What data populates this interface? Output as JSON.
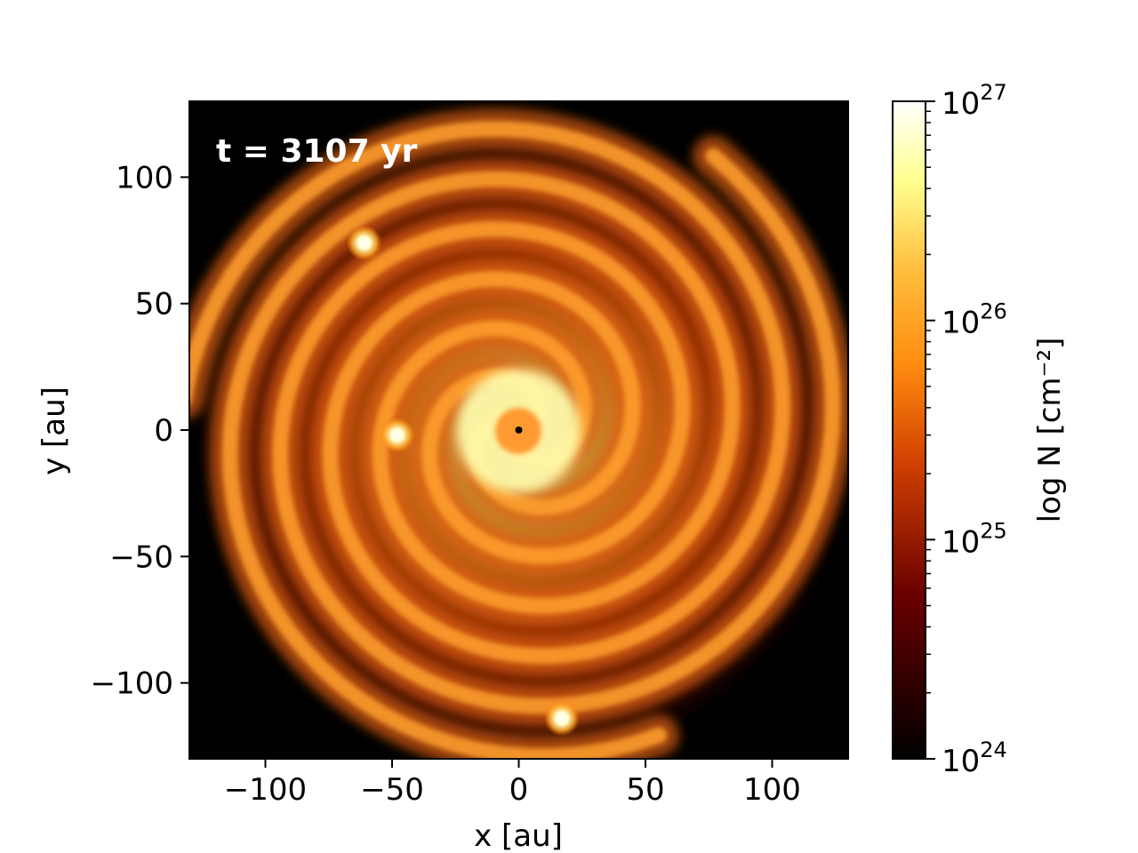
{
  "chart_data": {
    "type": "heatmap",
    "title": "",
    "annotation": "t = 3107 yr",
    "xlabel": "x [au]",
    "ylabel": "y [au]",
    "xlim": [
      -130,
      130
    ],
    "ylim": [
      -130,
      130
    ],
    "xticks": [
      -100,
      -50,
      0,
      50,
      100
    ],
    "yticks": [
      -100,
      -50,
      0,
      50,
      100
    ],
    "xtick_labels": [
      "−100",
      "−50",
      "0",
      "50",
      "100"
    ],
    "ytick_labels": [
      "−100",
      "−50",
      "0",
      "50",
      "100"
    ],
    "colormap": "afmhot",
    "colorbar": {
      "label": "log N [cm⁻²]",
      "scale": "log",
      "range": [
        1e+24,
        1e+27
      ],
      "ticks": [
        {
          "base": "10",
          "exp": "24",
          "value": 1e+24
        },
        {
          "base": "10",
          "exp": "25",
          "value": 1e+25
        },
        {
          "base": "10",
          "exp": "26",
          "value": 1e+26
        },
        {
          "base": "10",
          "exp": "27",
          "value": 1e+27
        }
      ]
    },
    "point_sources": [
      {
        "x": 0,
        "y": 0
      },
      {
        "x": -61,
        "y": 74
      },
      {
        "x": -48,
        "y": -2
      },
      {
        "x": 17,
        "y": -114
      }
    ],
    "spiral_arms": 3
  }
}
